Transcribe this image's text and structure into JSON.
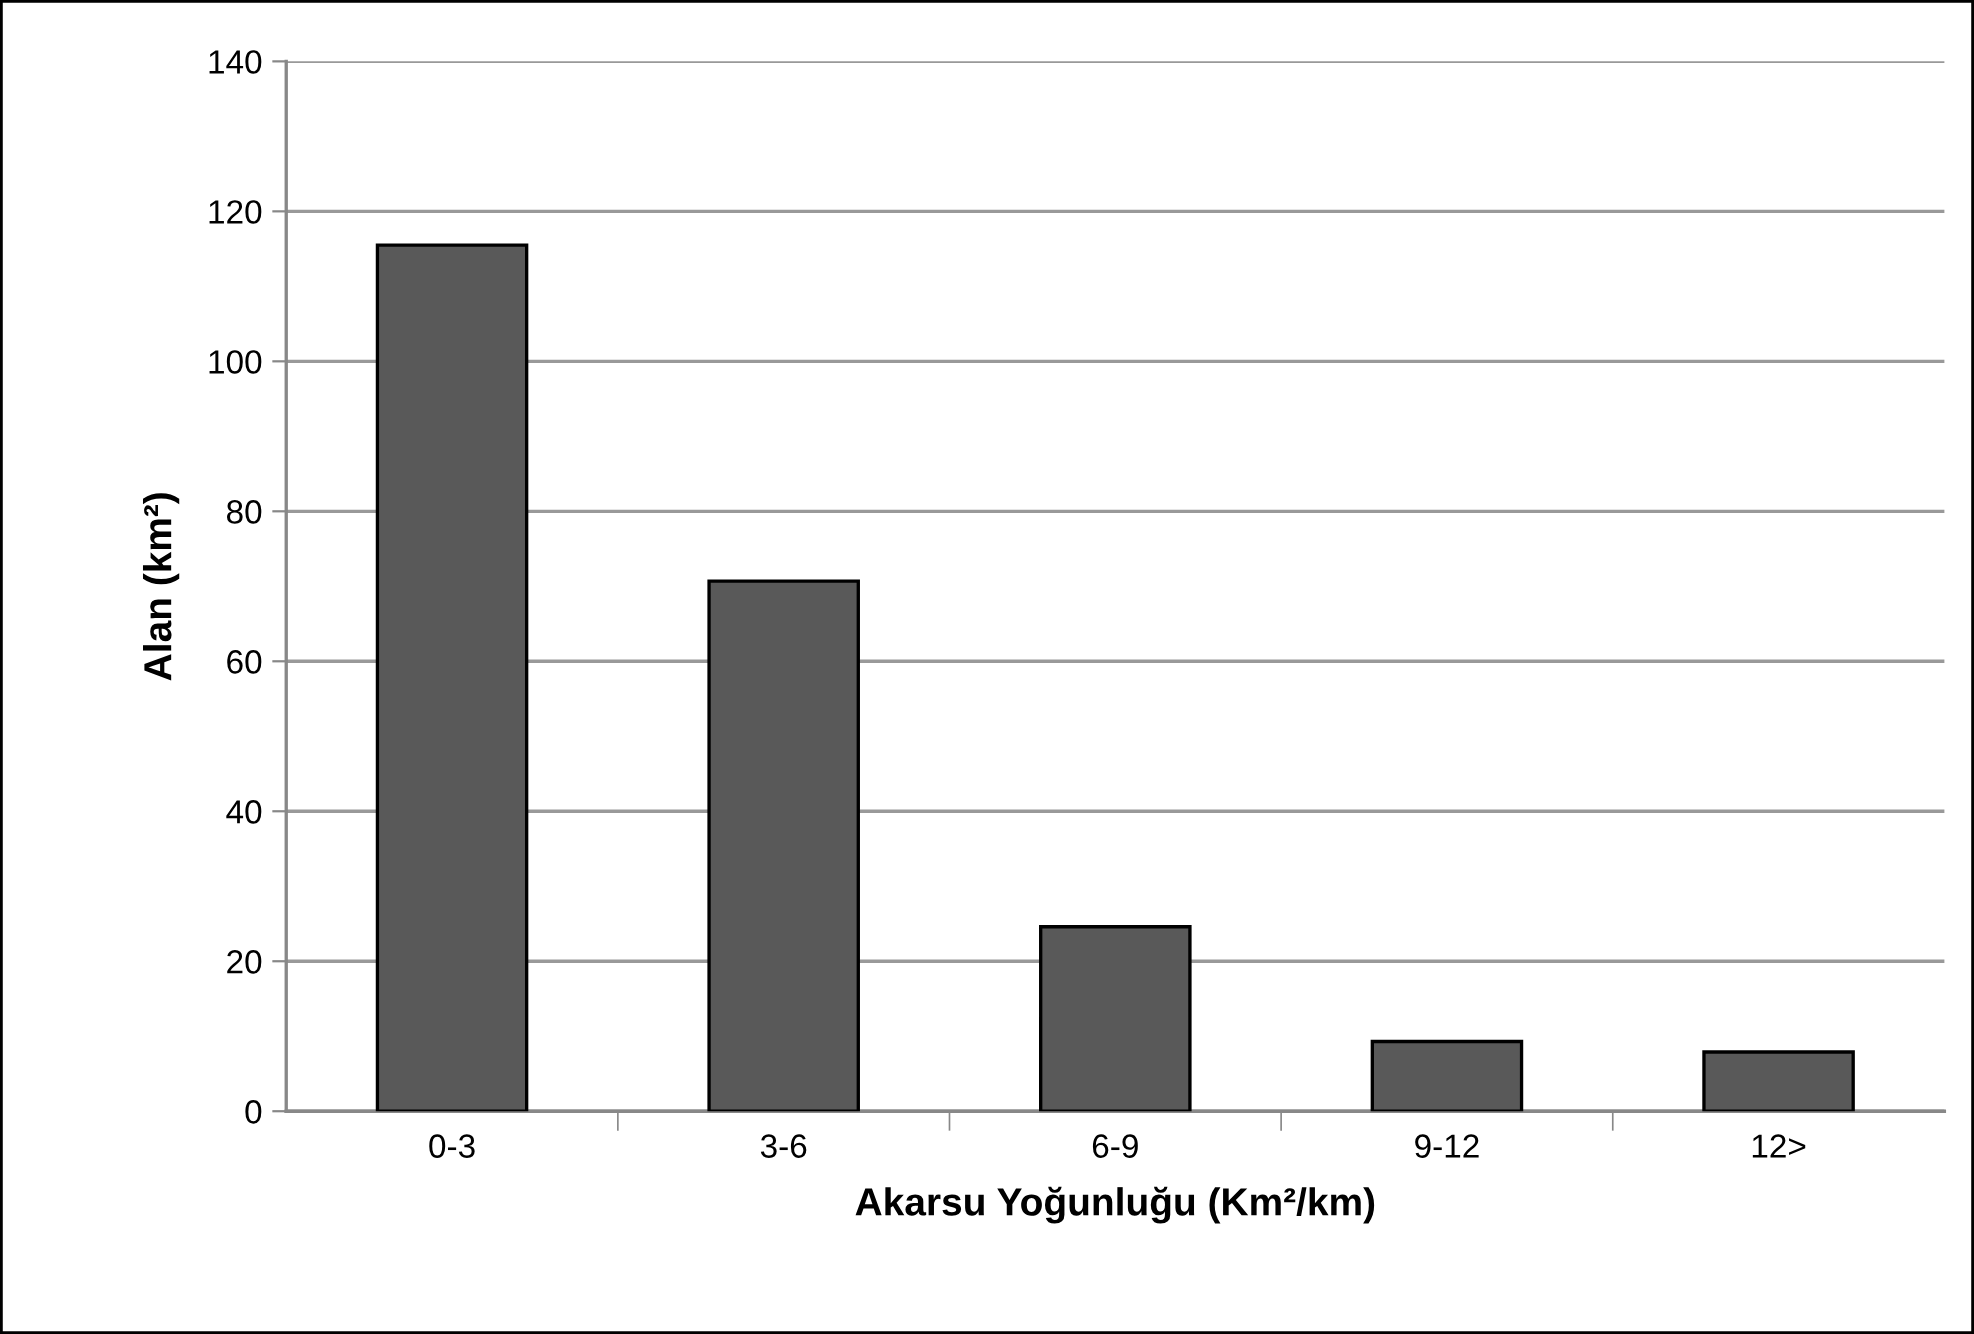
{
  "chart_data": {
    "type": "bar",
    "xlabel": "Akarsu Yoğunluğu (Km²/km)",
    "ylabel": "Alan (km²)",
    "categories": [
      "0-3",
      "3-6",
      "6-9",
      "9-12",
      "12>"
    ],
    "values": [
      115.5,
      70.7,
      24.6,
      9.3,
      7.9
    ],
    "color": "#595959",
    "ylim": [
      0,
      140
    ],
    "yticks": [
      0,
      20,
      40,
      60,
      80,
      100,
      120,
      140
    ],
    "grid": "y"
  }
}
